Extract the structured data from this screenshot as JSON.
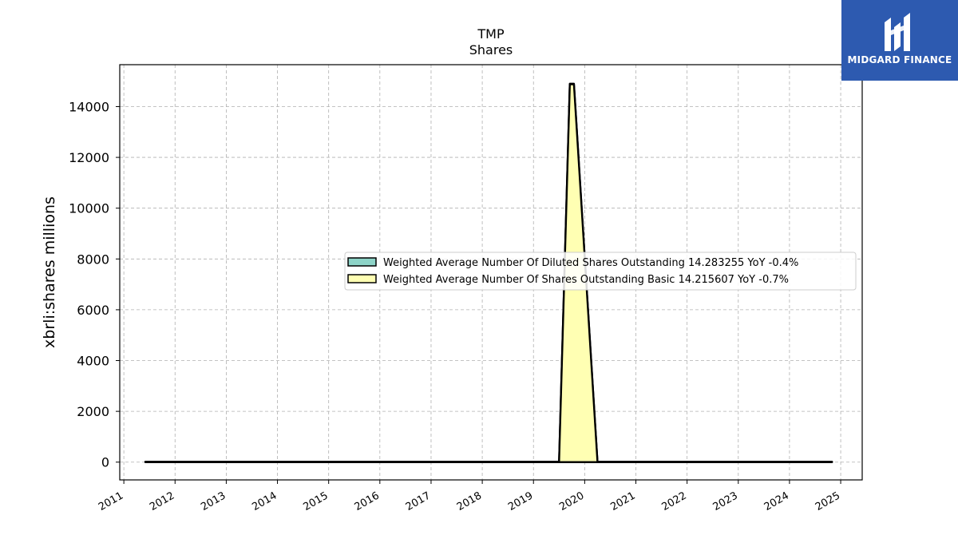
{
  "chart_data": {
    "type": "area",
    "title": "TMP",
    "subtitle": "Shares",
    "ylabel": "xbrli:shares millions",
    "xlabel": "",
    "xlim": [
      2010.92,
      2025.42
    ],
    "ylim": [
      -700,
      15650
    ],
    "x_ticks": [
      "2011",
      "2012",
      "2013",
      "2014",
      "2015",
      "2016",
      "2017",
      "2018",
      "2019",
      "2020",
      "2021",
      "2022",
      "2023",
      "2024",
      "2025"
    ],
    "y_ticks": [
      0,
      2000,
      4000,
      6000,
      8000,
      10000,
      12000,
      14000
    ],
    "grid": true,
    "legend_position": "center-right",
    "series": [
      {
        "name": "Weighted Average Number Of Diluted Shares Outstanding",
        "legend_label": "Weighted Average Number Of Diluted Shares Outstanding  14.283255 YoY -0.4%",
        "color": "#8dd3c7",
        "points": [
          [
            2011.42,
            14.9
          ],
          [
            2019.5,
            14.9
          ],
          [
            2019.71,
            14900
          ],
          [
            2019.79,
            14900
          ],
          [
            2020.25,
            14.3
          ],
          [
            2024.83,
            14.28
          ]
        ]
      },
      {
        "name": "Weighted Average Number Of Shares Outstanding Basic",
        "legend_label": "Weighted Average Number Of Shares Outstanding Basic  14.215607 YoY -0.7%",
        "color": "#ffffb3",
        "points": [
          [
            2011.42,
            14.8
          ],
          [
            2019.5,
            14.8
          ],
          [
            2019.71,
            14880
          ],
          [
            2019.79,
            14880
          ],
          [
            2020.25,
            14.25
          ],
          [
            2024.83,
            14.22
          ]
        ]
      }
    ]
  },
  "logo": {
    "text": "MIDGARD FINANCE",
    "color": "#2d5ab0"
  }
}
